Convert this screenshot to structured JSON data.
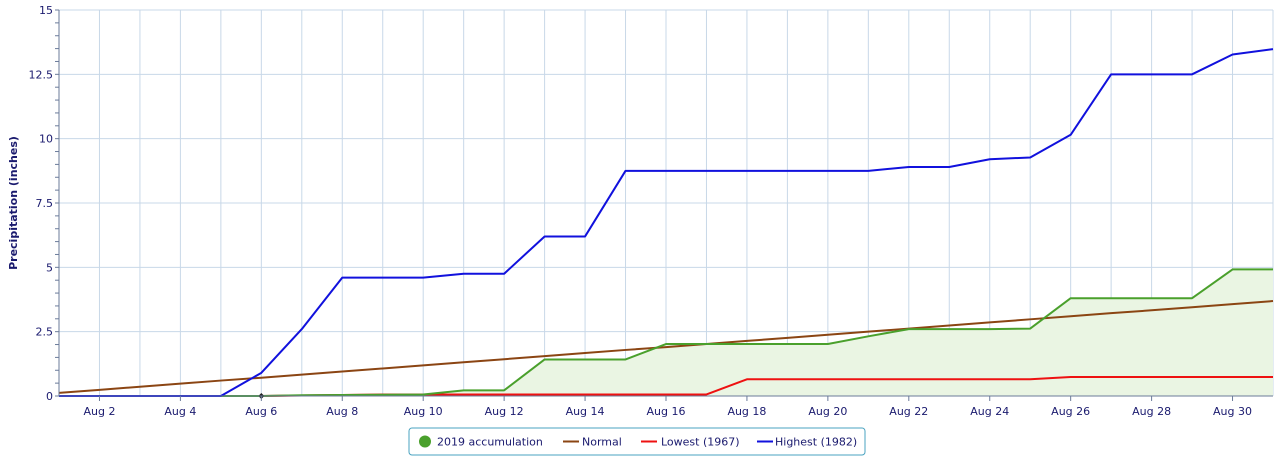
{
  "chart_data": {
    "type": "line",
    "title": "",
    "xlabel": "",
    "ylabel": "Precipitation (inches)",
    "ylim": [
      0,
      15
    ],
    "yticks": [
      0,
      2.5,
      5,
      7.5,
      10,
      12.5,
      15
    ],
    "ytick_labels": [
      "0",
      "2.5",
      "5",
      "7.5",
      "10",
      "12.5",
      "15"
    ],
    "xlim": [
      1,
      31
    ],
    "xticks": [
      2,
      4,
      6,
      8,
      10,
      12,
      14,
      16,
      18,
      20,
      22,
      24,
      26,
      28,
      30
    ],
    "xtick_labels": [
      "Aug 2",
      "Aug 4",
      "Aug 6",
      "Aug 8",
      "Aug 10",
      "Aug 12",
      "Aug 14",
      "Aug 16",
      "Aug 18",
      "Aug 20",
      "Aug 22",
      "Aug 24",
      "Aug 26",
      "Aug 28",
      "Aug 30"
    ],
    "grid": true,
    "legend_position": "bottom-center",
    "series": [
      {
        "name": "2019 accumulation",
        "color": "#4aa02c",
        "fill": "#eaf5e3",
        "x": [
          1,
          2,
          3,
          4,
          5,
          6,
          7,
          8,
          9,
          10,
          11,
          12,
          13,
          14,
          15,
          16,
          17,
          18,
          19,
          20,
          21,
          22,
          23,
          24,
          25,
          26,
          27,
          28,
          29,
          30,
          31
        ],
        "values": [
          0,
          0,
          0,
          0,
          0,
          0,
          0.03,
          0.04,
          0.05,
          0.06,
          0.22,
          0.22,
          1.42,
          1.42,
          1.42,
          2.02,
          2.02,
          2.02,
          2.02,
          2.02,
          2.32,
          2.6,
          2.6,
          2.6,
          2.62,
          3.8,
          3.8,
          3.8,
          3.8,
          4.92,
          4.92
        ]
      },
      {
        "name": "Normal",
        "color": "#8b4513",
        "x": [
          1,
          2,
          3,
          4,
          5,
          6,
          7,
          8,
          9,
          10,
          11,
          12,
          13,
          14,
          15,
          16,
          17,
          18,
          19,
          20,
          21,
          22,
          23,
          24,
          25,
          26,
          27,
          28,
          29,
          30,
          31
        ],
        "values": [
          0.12,
          0.24,
          0.36,
          0.48,
          0.6,
          0.71,
          0.83,
          0.95,
          1.07,
          1.19,
          1.31,
          1.43,
          1.55,
          1.67,
          1.79,
          1.9,
          2.02,
          2.14,
          2.26,
          2.38,
          2.5,
          2.62,
          2.74,
          2.86,
          2.98,
          3.1,
          3.22,
          3.33,
          3.45,
          3.57,
          3.69
        ]
      },
      {
        "name": "Lowest (1967)",
        "color": "#ee1111",
        "x": [
          1,
          2,
          3,
          4,
          5,
          6,
          7,
          8,
          9,
          10,
          11,
          12,
          13,
          14,
          15,
          16,
          17,
          18,
          19,
          20,
          21,
          22,
          23,
          24,
          25,
          26,
          27,
          28,
          29,
          30,
          31
        ],
        "values": [
          0,
          0,
          0,
          0,
          0,
          0,
          0.02,
          0.04,
          0.06,
          0.06,
          0.06,
          0.06,
          0.06,
          0.06,
          0.06,
          0.06,
          0.06,
          0.65,
          0.65,
          0.65,
          0.65,
          0.65,
          0.65,
          0.65,
          0.65,
          0.74,
          0.74,
          0.74,
          0.74,
          0.74,
          0.74
        ]
      },
      {
        "name": "Highest (1982)",
        "color": "#1111dd",
        "x": [
          1,
          2,
          3,
          4,
          5,
          6,
          7,
          8,
          9,
          10,
          11,
          12,
          13,
          14,
          15,
          16,
          17,
          18,
          19,
          20,
          21,
          22,
          23,
          24,
          25,
          26,
          27,
          28,
          29,
          30,
          31
        ],
        "values": [
          0,
          0,
          0,
          0,
          0,
          0.9,
          2.6,
          4.6,
          4.6,
          4.6,
          4.75,
          4.75,
          6.2,
          6.2,
          8.75,
          8.75,
          8.75,
          8.75,
          8.75,
          8.75,
          8.75,
          8.9,
          8.9,
          9.2,
          9.27,
          10.15,
          12.5,
          12.5,
          12.5,
          13.27,
          13.48
        ]
      }
    ],
    "marker": {
      "x": 6,
      "y": 0
    }
  },
  "legend": {
    "items": [
      {
        "label": "2019 accumulation",
        "color": "#4aa02c",
        "symbol": "circle"
      },
      {
        "label": "Normal",
        "color": "#8b4513",
        "symbol": "line"
      },
      {
        "label": "Lowest (1967)",
        "color": "#ee1111",
        "symbol": "line"
      },
      {
        "label": "Highest (1982)",
        "color": "#1111dd",
        "symbol": "line"
      }
    ]
  }
}
